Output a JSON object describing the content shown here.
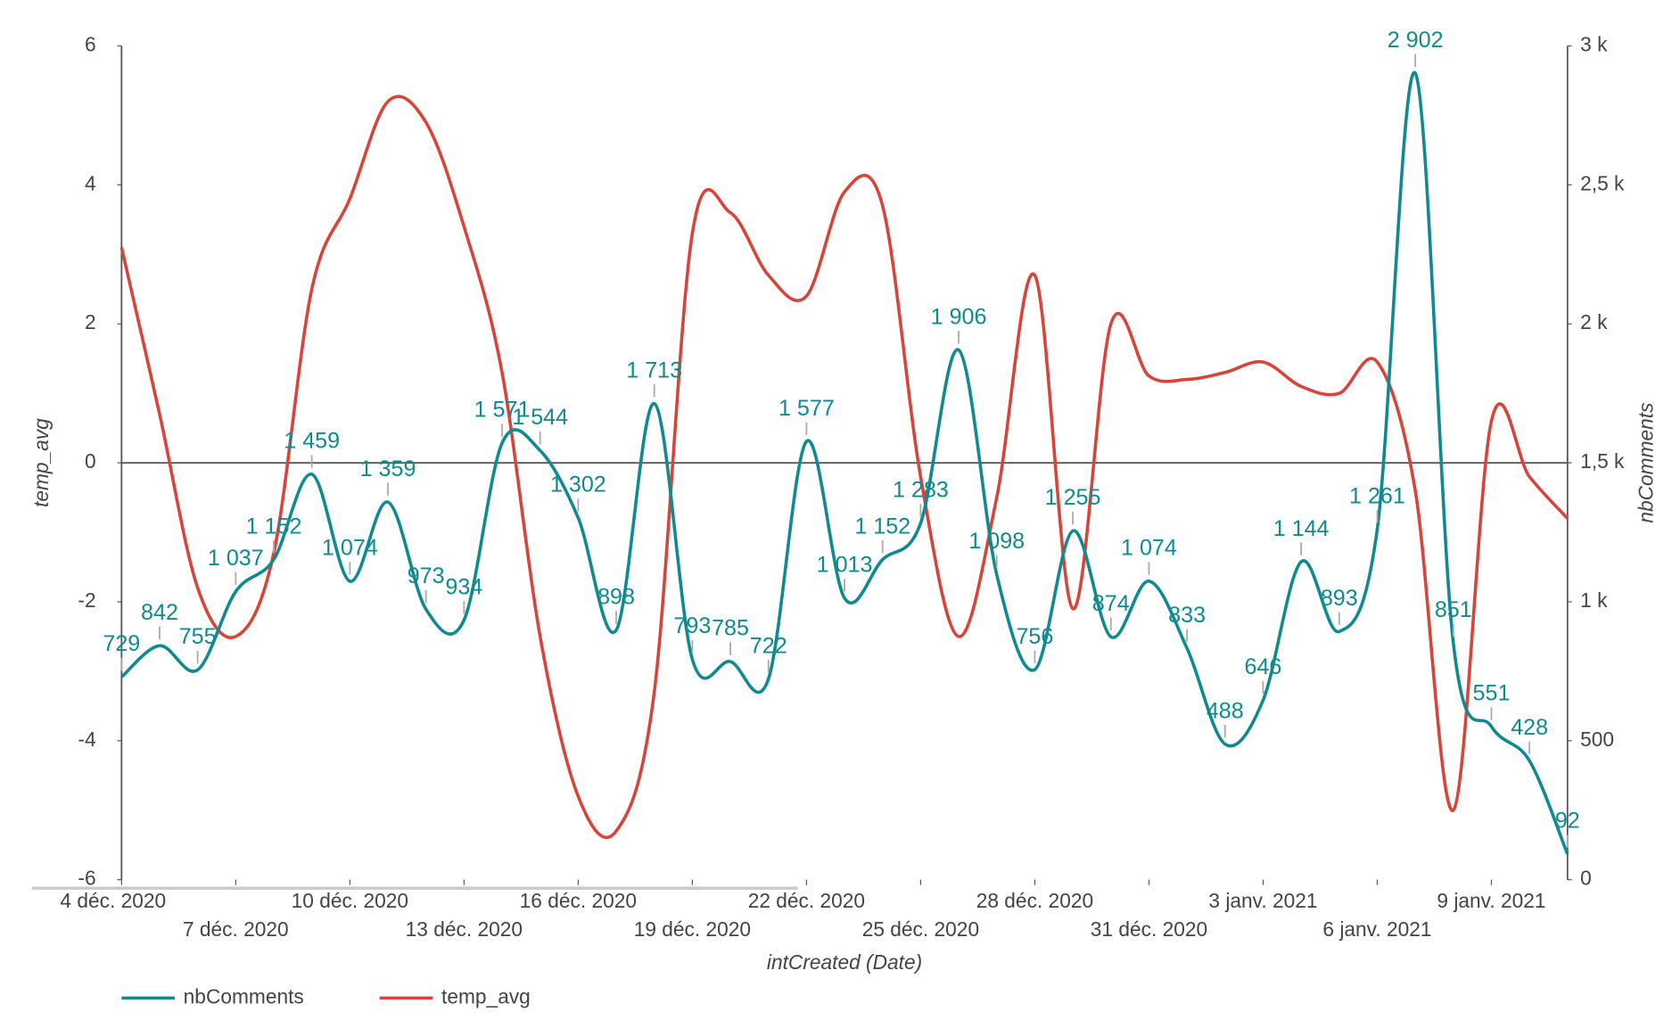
{
  "chart_data": {
    "type": "line",
    "x": [
      "2020-12-04",
      "2020-12-05",
      "2020-12-06",
      "2020-12-07",
      "2020-12-08",
      "2020-12-09",
      "2020-12-10",
      "2020-12-11",
      "2020-12-12",
      "2020-12-13",
      "2020-12-14",
      "2020-12-15",
      "2020-12-16",
      "2020-12-17",
      "2020-12-18",
      "2020-12-19",
      "2020-12-20",
      "2020-12-21",
      "2020-12-22",
      "2020-12-23",
      "2020-12-24",
      "2020-12-25",
      "2020-12-26",
      "2020-12-27",
      "2020-12-28",
      "2020-12-29",
      "2020-12-30",
      "2020-12-31",
      "2021-01-01",
      "2021-01-02",
      "2021-01-03",
      "2021-01-04",
      "2021-01-05",
      "2021-01-06",
      "2021-01-07",
      "2021-01-08",
      "2021-01-09",
      "2021-01-10",
      "2021-01-11"
    ],
    "xlim": [
      "2020-12-04",
      "2021-01-11"
    ],
    "xticks": [
      {
        "value": "2020-12-04",
        "label": "4 déc. 2020"
      },
      {
        "value": "2020-12-07",
        "label": "7 déc. 2020"
      },
      {
        "value": "2020-12-10",
        "label": "10 déc. 2020"
      },
      {
        "value": "2020-12-13",
        "label": "13 déc. 2020"
      },
      {
        "value": "2020-12-16",
        "label": "16 déc. 2020"
      },
      {
        "value": "2020-12-19",
        "label": "19 déc. 2020"
      },
      {
        "value": "2020-12-22",
        "label": "22 déc. 2020"
      },
      {
        "value": "2020-12-25",
        "label": "25 déc. 2020"
      },
      {
        "value": "2020-12-28",
        "label": "28 déc. 2020"
      },
      {
        "value": "2020-12-31",
        "label": "31 déc. 2020"
      },
      {
        "value": "2021-01-03",
        "label": "3 janv. 2021"
      },
      {
        "value": "2021-01-06",
        "label": "6 janv. 2021"
      },
      {
        "value": "2021-01-09",
        "label": "9 janv. 2021"
      }
    ],
    "x_label": "intCreated (Date)",
    "y_label": "temp_avg",
    "y2_label": "nbComments",
    "ylim": [
      -6,
      6
    ],
    "yticks": [
      -6,
      -4,
      -2,
      0,
      2,
      4,
      6
    ],
    "y2lim": [
      0,
      3000
    ],
    "y2ticks": [
      0,
      500,
      {
        "value": 1000,
        "label": "1 k"
      },
      {
        "value": 1500,
        "label": "1,5 k"
      },
      {
        "value": 2000,
        "label": "2 k"
      },
      {
        "value": 2500,
        "label": "2,5 k"
      },
      {
        "value": 3000,
        "label": "3 k"
      }
    ],
    "series": [
      {
        "name": "nbComments",
        "color": "#0f8a8f",
        "axis": "y2",
        "values": [
          729,
          842,
          755,
          1037,
          1152,
          1459,
          1074,
          1359,
          973,
          934,
          1571,
          1544,
          1302,
          898,
          1713,
          793,
          785,
          722,
          1577,
          1013,
          1152,
          1283,
          1906,
          1098,
          756,
          1255,
          874,
          1074,
          833,
          488,
          646,
          1144,
          893,
          1261,
          2902,
          851,
          551,
          428,
          92
        ],
        "value_labels": [
          "729",
          "842",
          "755",
          "1 037",
          "1 152",
          "1 459",
          "1 074",
          "1 359",
          "973",
          "934",
          "1 571",
          "1 544",
          "1 302",
          "898",
          "1 713",
          "793",
          "785",
          "722",
          "1 577",
          "1 013",
          "1 152",
          "1 283",
          "1 906",
          "1 098",
          "756",
          "1 255",
          "874",
          "1 074",
          "833",
          "488",
          "646",
          "1 144",
          "893",
          "1 261",
          "2 902",
          "851",
          "551",
          "428",
          "92"
        ]
      },
      {
        "name": "temp_avg",
        "color": "#d9443a",
        "values": [
          3.1,
          0.7,
          -1.8,
          -2.5,
          -1.3,
          2.5,
          3.8,
          5.2,
          4.9,
          3.4,
          1.3,
          -2.5,
          -4.8,
          -5.3,
          -3.3,
          3.3,
          3.6,
          2.7,
          2.4,
          3.9,
          3.7,
          -0.2,
          -2.5,
          -0.5,
          2.7,
          -2.1,
          2.0,
          1.25,
          1.2,
          1.3,
          1.45,
          1.1,
          1.0,
          1.45,
          -0.4,
          -5.0,
          0.6,
          -0.2,
          -0.8
        ]
      }
    ]
  }
}
